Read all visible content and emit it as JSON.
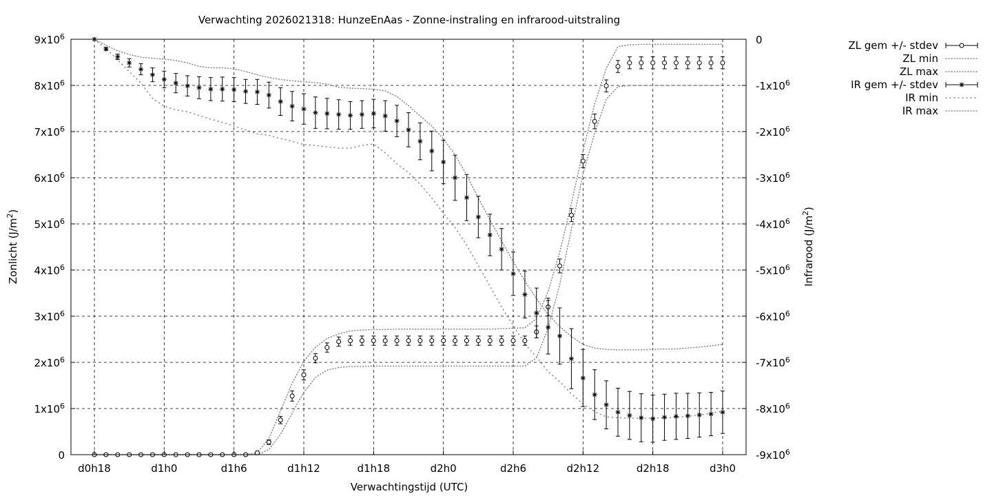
{
  "chart_data": {
    "type": "line",
    "title": "Verwachting 2026021318: HunzeEnAas - Zonne-instraling en infrarood-uitstraling",
    "xlabel": "Verwachtingstijd (UTC)",
    "ylabel": "Zonlicht (J/m",
    "y2label": "Infrarood (J/m",
    "unit_exponent": "2",
    "unit_close": ")",
    "xlim": [
      0,
      54
    ],
    "ylim": [
      0,
      9000000
    ],
    "y2lim": [
      -9000000,
      0
    ],
    "grid": true,
    "legend_position": "outside-right",
    "x_ticks": [
      {
        "x": 0,
        "label": "d0h18"
      },
      {
        "x": 6,
        "label": "d1h0"
      },
      {
        "x": 12,
        "label": "d1h6"
      },
      {
        "x": 18,
        "label": "d1h12"
      },
      {
        "x": 24,
        "label": "d1h18"
      },
      {
        "x": 30,
        "label": "d2h0"
      },
      {
        "x": 36,
        "label": "d2h6"
      },
      {
        "x": 42,
        "label": "d2h12"
      },
      {
        "x": 48,
        "label": "d2h18"
      },
      {
        "x": 54,
        "label": "d3h0"
      }
    ],
    "y_ticks": [
      {
        "v": 0,
        "b": "0",
        "e": ""
      },
      {
        "v": 1000000,
        "b": "1x10",
        "e": "6"
      },
      {
        "v": 2000000,
        "b": "2x10",
        "e": "6"
      },
      {
        "v": 3000000,
        "b": "3x10",
        "e": "6"
      },
      {
        "v": 4000000,
        "b": "4x10",
        "e": "6"
      },
      {
        "v": 5000000,
        "b": "5x10",
        "e": "6"
      },
      {
        "v": 6000000,
        "b": "6x10",
        "e": "6"
      },
      {
        "v": 7000000,
        "b": "7x10",
        "e": "6"
      },
      {
        "v": 8000000,
        "b": "8x10",
        "e": "6"
      },
      {
        "v": 9000000,
        "b": "9x10",
        "e": "6"
      }
    ],
    "y2_ticks": [
      {
        "v": 0,
        "b": "0",
        "e": ""
      },
      {
        "v": -1000000,
        "b": "-1x10",
        "e": "6"
      },
      {
        "v": -2000000,
        "b": "-2x10",
        "e": "6"
      },
      {
        "v": -3000000,
        "b": "-3x10",
        "e": "6"
      },
      {
        "v": -4000000,
        "b": "-4x10",
        "e": "6"
      },
      {
        "v": -5000000,
        "b": "-5x10",
        "e": "6"
      },
      {
        "v": -6000000,
        "b": "-6x10",
        "e": "6"
      },
      {
        "v": -7000000,
        "b": "-7x10",
        "e": "6"
      },
      {
        "v": -8000000,
        "b": "-8x10",
        "e": "6"
      },
      {
        "v": -9000000,
        "b": "-9x10",
        "e": "6"
      }
    ],
    "zl_mean": [
      0,
      0,
      0,
      0,
      0,
      0,
      0,
      0,
      0,
      0,
      0,
      0,
      0,
      0,
      40000,
      270000,
      750000,
      1270000,
      1730000,
      2090000,
      2320000,
      2450000,
      2470000,
      2470000,
      2470000,
      2470000,
      2470000,
      2470000,
      2470000,
      2470000,
      2470000,
      2470000,
      2470000,
      2470000,
      2470000,
      2470000,
      2470000,
      2470000,
      2660000,
      3200000,
      4090000,
      5190000,
      6360000,
      7220000,
      7990000,
      8410000,
      8490000,
      8490000,
      8490000,
      8490000,
      8490000,
      8490000,
      8490000,
      8490000,
      8490000
    ],
    "zl_stdev": [
      0,
      0,
      0,
      0,
      0,
      0,
      0,
      0,
      0,
      0,
      0,
      0,
      0,
      0,
      20000,
      50000,
      80000,
      110000,
      110000,
      100000,
      100000,
      100000,
      100000,
      100000,
      100000,
      100000,
      100000,
      100000,
      100000,
      100000,
      100000,
      100000,
      100000,
      100000,
      100000,
      100000,
      100000,
      100000,
      130000,
      190000,
      150000,
      140000,
      140000,
      160000,
      130000,
      130000,
      130000,
      130000,
      130000,
      130000,
      130000,
      130000,
      130000,
      130000,
      130000
    ],
    "zl_min": [
      0,
      0,
      0,
      0,
      0,
      0,
      0,
      0,
      0,
      0,
      0,
      0,
      0,
      0,
      0,
      110000,
      440000,
      900000,
      1350000,
      1670000,
      1830000,
      1890000,
      1910000,
      1910000,
      1920000,
      1920000,
      1920000,
      1920000,
      1920000,
      1920000,
      1920000,
      1920000,
      1920000,
      1920000,
      1920000,
      1920000,
      1920000,
      1920000,
      2100000,
      2740000,
      3690000,
      4880000,
      6080000,
      6970000,
      7700000,
      7970000,
      8000000,
      8000000,
      8000000,
      8000000,
      8000000,
      8000000,
      8000000,
      8000000,
      8000000
    ],
    "zl_max": [
      0,
      0,
      0,
      0,
      0,
      0,
      0,
      0,
      0,
      0,
      0,
      0,
      0,
      0,
      40000,
      350000,
      950000,
      1550000,
      2020000,
      2330000,
      2520000,
      2620000,
      2680000,
      2700000,
      2710000,
      2710000,
      2720000,
      2720000,
      2720000,
      2720000,
      2720000,
      2720000,
      2720000,
      2720000,
      2720000,
      2730000,
      2740000,
      2750000,
      2950000,
      3540000,
      4390000,
      5440000,
      6580000,
      7600000,
      8370000,
      8840000,
      8880000,
      8890000,
      8890000,
      8890000,
      8890000,
      8890000,
      8890000,
      8890000,
      8890000
    ],
    "ir_mean": [
      0,
      -210000,
      -380000,
      -510000,
      -650000,
      -770000,
      -870000,
      -950000,
      -1010000,
      -1050000,
      -1080000,
      -1080000,
      -1090000,
      -1130000,
      -1140000,
      -1210000,
      -1350000,
      -1450000,
      -1510000,
      -1590000,
      -1610000,
      -1630000,
      -1650000,
      -1630000,
      -1610000,
      -1660000,
      -1770000,
      -1960000,
      -2210000,
      -2420000,
      -2660000,
      -3000000,
      -3430000,
      -3850000,
      -4240000,
      -4550000,
      -5080000,
      -5530000,
      -5930000,
      -6240000,
      -6430000,
      -6920000,
      -7340000,
      -7700000,
      -7920000,
      -8080000,
      -8150000,
      -8200000,
      -8220000,
      -8190000,
      -8170000,
      -8160000,
      -8140000,
      -8120000,
      -8080000
    ],
    "ir_stdev": [
      0,
      30000,
      60000,
      90000,
      120000,
      150000,
      180000,
      210000,
      220000,
      240000,
      250000,
      260000,
      260000,
      260000,
      270000,
      280000,
      300000,
      320000,
      330000,
      340000,
      330000,
      320000,
      300000,
      300000,
      310000,
      330000,
      340000,
      370000,
      400000,
      430000,
      470000,
      490000,
      500000,
      450000,
      450000,
      450000,
      470000,
      510000,
      540000,
      580000,
      610000,
      650000,
      620000,
      540000,
      520000,
      520000,
      520000,
      520000,
      510000,
      500000,
      500000,
      490000,
      480000,
      470000,
      460000
    ],
    "ir_min": [
      0,
      -200000,
      -450000,
      -700000,
      -950000,
      -1280000,
      -1450000,
      -1530000,
      -1570000,
      -1650000,
      -1730000,
      -1800000,
      -1880000,
      -1960000,
      -2050000,
      -2080000,
      -2150000,
      -2210000,
      -2280000,
      -2300000,
      -2330000,
      -2360000,
      -2360000,
      -2300000,
      -2270000,
      -2460000,
      -2700000,
      -2890000,
      -3140000,
      -3440000,
      -3770000,
      -4080000,
      -4460000,
      -4900000,
      -5350000,
      -5800000,
      -6200000,
      -6600000,
      -6880000,
      -7200000,
      -7420000,
      -7680000,
      -7900000,
      -8070000,
      -8180000,
      -8200000,
      -8210000,
      -8210000,
      -8210000,
      -8200000,
      -8190000,
      -8170000,
      -8140000,
      -8100000,
      -8060000
    ],
    "ir_max": [
      0,
      -130000,
      -250000,
      -330000,
      -390000,
      -410000,
      -430000,
      -460000,
      -510000,
      -590000,
      -620000,
      -620000,
      -640000,
      -700000,
      -770000,
      -830000,
      -870000,
      -900000,
      -920000,
      -940000,
      -970000,
      -1040000,
      -1060000,
      -1070000,
      -1080000,
      -1120000,
      -1240000,
      -1440000,
      -1660000,
      -1880000,
      -2160000,
      -2500000,
      -2940000,
      -3440000,
      -3910000,
      -4370000,
      -4820000,
      -5240000,
      -5620000,
      -5960000,
      -6230000,
      -6440000,
      -6610000,
      -6690000,
      -6720000,
      -6730000,
      -6730000,
      -6730000,
      -6720000,
      -6710000,
      -6710000,
      -6690000,
      -6670000,
      -6640000,
      -6610000
    ],
    "legend": [
      {
        "label": "ZL gem +/- stdev",
        "kind": "errorbars-circle"
      },
      {
        "label": "ZL min",
        "kind": "dotted"
      },
      {
        "label": "ZL max",
        "kind": "dotted"
      },
      {
        "label": "IR gem +/- stdev",
        "kind": "errorbars-star"
      },
      {
        "label": "IR min",
        "kind": "dotted-sparse"
      },
      {
        "label": "IR max",
        "kind": "dotted"
      }
    ],
    "colors": {
      "marks": "#000000",
      "minmax": "#888888",
      "grid": "#000000",
      "background": "#ffffff"
    }
  }
}
